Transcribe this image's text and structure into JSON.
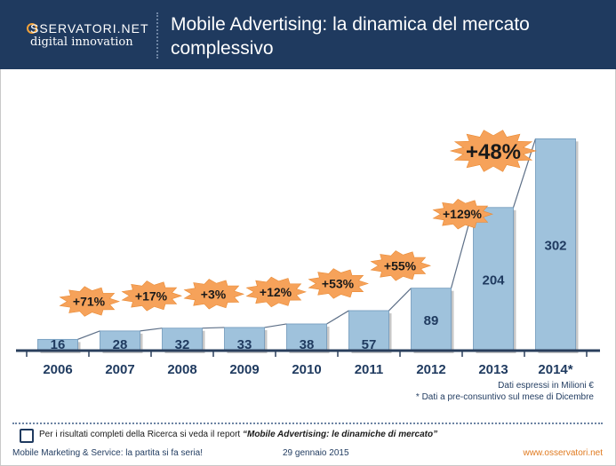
{
  "header": {
    "logo_top": "SSERVATORI.NET",
    "logo_bottom": "digital innovation",
    "title": "Mobile Advertising: la dinamica del mercato complessivo"
  },
  "chart_data": {
    "type": "bar",
    "title": "Mobile Advertising: la dinamica del mercato complessivo",
    "categories": [
      "2006",
      "2007",
      "2008",
      "2009",
      "2010",
      "2011",
      "2012",
      "2013",
      "2014*"
    ],
    "values": [
      16,
      28,
      32,
      33,
      38,
      57,
      89,
      204,
      302
    ],
    "growth_labels": [
      "+71%",
      "+17%",
      "+3%",
      "+12%",
      "+53%",
      "+55%",
      "+129%",
      "+48%"
    ],
    "unit": "Milioni €",
    "xlabel": "",
    "ylabel": "",
    "ylim": [
      0,
      310
    ],
    "bar_color": "#9fc2dc",
    "burst_color": "#f6a25a"
  },
  "notes": {
    "line1": "Dati espressi in Milioni €",
    "line2": "* Dati a pre-consuntivo sul mese di Dicembre"
  },
  "research": {
    "prefix": "Per i risultati completi della Ricerca si veda il report ",
    "report": "“Mobile Advertising: le dinamiche di mercato”"
  },
  "footer": {
    "left": "Mobile Marketing & Service: la partita si fa seria!",
    "date": "29 gennaio 2015",
    "url": "www.osservatori.net"
  }
}
